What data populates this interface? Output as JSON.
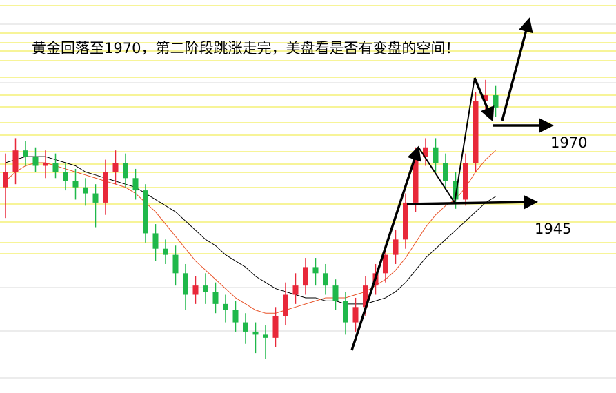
{
  "chart_data": {
    "type": "candlestick",
    "title": "黄金回落至1970，第二阶段跳涨走完，美盘看是否有变盘的空间！",
    "annotations": [
      "1970",
      "1945"
    ],
    "categories": [
      null,
      null,
      null,
      null,
      null,
      null,
      null,
      null,
      null,
      null,
      null,
      null,
      null,
      null,
      null,
      null,
      null,
      null,
      null,
      null,
      null,
      null,
      null,
      null,
      null,
      null,
      null,
      null,
      null,
      null,
      null,
      null,
      null,
      null,
      null,
      null,
      null,
      null,
      null,
      null,
      null,
      null,
      null,
      null,
      null,
      null,
      null,
      null,
      null,
      null
    ],
    "open": [
      1950,
      1955,
      1962,
      1960,
      1957,
      1958,
      1955,
      1952,
      1950,
      1948,
      1945,
      1955,
      1958,
      1953,
      1949,
      1935,
      1930,
      1928,
      1922,
      1915,
      1918,
      1916,
      1912,
      1910,
      1906,
      1903,
      1902,
      1901,
      1908,
      1915,
      1918,
      1924,
      1922,
      1918,
      1913,
      1906,
      1911,
      1918,
      1922,
      1928,
      1933,
      1945,
      1960,
      1963,
      1958,
      1952,
      1946,
      1958,
      1978,
      1980
    ],
    "close": [
      1955,
      1962,
      1960,
      1957,
      1958,
      1955,
      1952,
      1950,
      1948,
      1945,
      1955,
      1958,
      1953,
      1949,
      1935,
      1930,
      1928,
      1922,
      1915,
      1918,
      1916,
      1912,
      1910,
      1906,
      1903,
      1902,
      1901,
      1908,
      1915,
      1918,
      1924,
      1922,
      1918,
      1913,
      1906,
      1911,
      1918,
      1922,
      1928,
      1933,
      1945,
      1960,
      1963,
      1958,
      1952,
      1946,
      1958,
      1978,
      1980,
      1976
    ],
    "high": [
      1961,
      1966,
      1965,
      1963,
      1962,
      1961,
      1958,
      1956,
      1953,
      1951,
      1959,
      1962,
      1961,
      1956,
      1951,
      1938,
      1933,
      1931,
      1925,
      1921,
      1922,
      1919,
      1915,
      1913,
      1909,
      1906,
      1905,
      1911,
      1919,
      1922,
      1927,
      1927,
      1925,
      1920,
      1916,
      1914,
      1921,
      1925,
      1931,
      1936,
      1948,
      1963,
      1966,
      1966,
      1961,
      1955,
      1961,
      1981,
      1985,
      1983
    ],
    "low": [
      1940,
      1951,
      1957,
      1955,
      1953,
      1953,
      1949,
      1946,
      1944,
      1937,
      1941,
      1951,
      1950,
      1946,
      1932,
      1926,
      1925,
      1918,
      1910,
      1912,
      1912,
      1909,
      1906,
      1903,
      1899,
      1896,
      1894,
      1898,
      1905,
      1912,
      1915,
      1918,
      1915,
      1910,
      1902,
      1903,
      1908,
      1915,
      1919,
      1925,
      1930,
      1942,
      1957,
      1955,
      1949,
      1943,
      1944,
      1955,
      1974,
      1973
    ],
    "up_color": "#e8283a",
    "down_color": "#1fb84a",
    "series": [
      {
        "color": "#000000",
        "values": [
          1958,
          1959,
          1960,
          1960,
          1960,
          1959,
          1958,
          1957,
          1955,
          1954,
          1953,
          1952,
          1951,
          1950,
          1948,
          1946,
          1944,
          1942,
          1939,
          1936,
          1933,
          1931,
          1928,
          1926,
          1924,
          1921,
          1919,
          1917,
          1916,
          1915,
          1914,
          1914,
          1913,
          1913,
          1912,
          1912,
          1912,
          1913,
          1914,
          1916,
          1919,
          1923,
          1927,
          1930,
          1933,
          1936,
          1939,
          1942,
          1945,
          1947
        ]
      },
      {
        "color": "#e8542a",
        "values": [
          1952,
          1955,
          1957,
          1958,
          1958,
          1957,
          1956,
          1955,
          1954,
          1953,
          1952,
          1951,
          1950,
          1948,
          1945,
          1942,
          1938,
          1934,
          1930,
          1926,
          1923,
          1920,
          1917,
          1914,
          1912,
          1910,
          1909,
          1909,
          1910,
          1911,
          1912,
          1913,
          1914,
          1914,
          1914,
          1915,
          1916,
          1918,
          1920,
          1923,
          1927,
          1932,
          1937,
          1941,
          1944,
          1946,
          1950,
          1955,
          1959,
          1962
        ]
      }
    ],
    "ylim": [
      1883,
      2011
    ]
  }
}
